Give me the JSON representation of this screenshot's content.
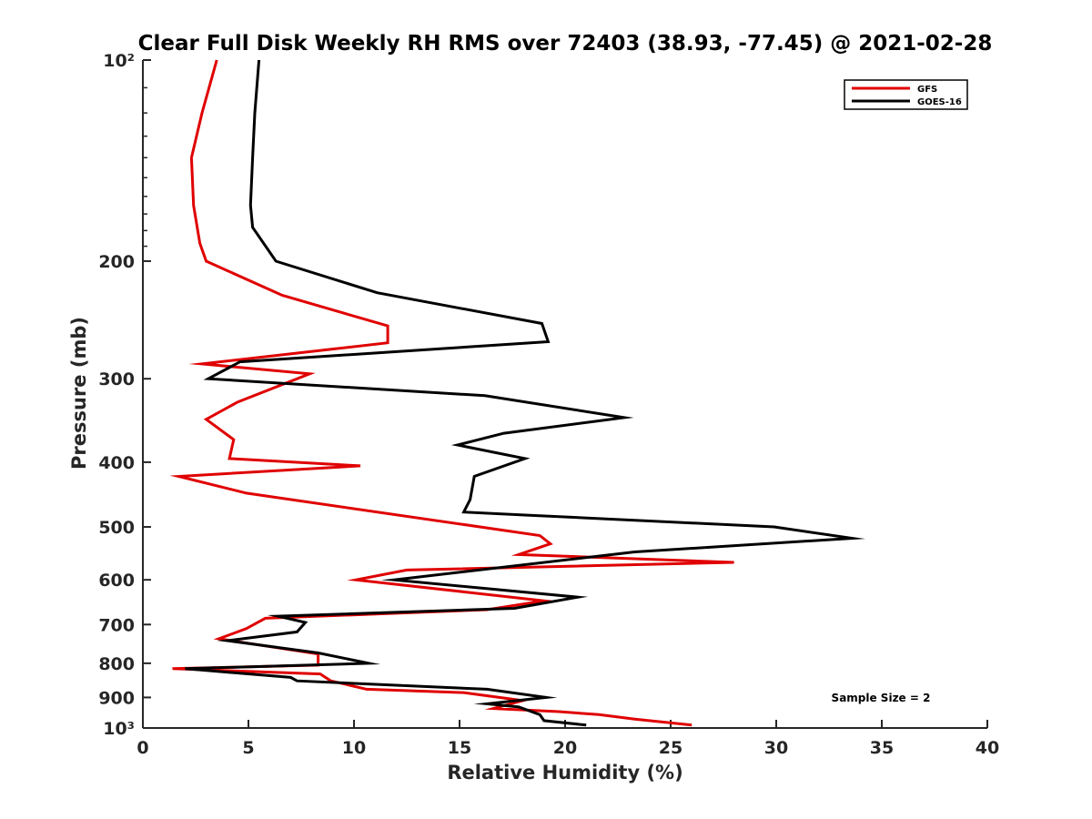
{
  "chart_data": {
    "type": "line",
    "title": "Clear Full Disk Weekly RH RMS over 72403 (38.93, -77.45) @ 2021-02-28",
    "xlabel": "Relative Humidity (%)",
    "ylabel": "Pressure (mb)",
    "xlim": [
      0,
      40
    ],
    "ylim": [
      100,
      1000
    ],
    "yscale": "log",
    "y_reversed": true,
    "grid": false,
    "legend_position": "top-right",
    "x_ticks": [
      0,
      5,
      10,
      15,
      20,
      25,
      30,
      35,
      40
    ],
    "x_tick_labels": [
      "0",
      "5",
      "10",
      "15",
      "20",
      "25",
      "30",
      "35",
      "40"
    ],
    "y_ticks": [
      100,
      200,
      300,
      400,
      500,
      600,
      700,
      800,
      900,
      1000
    ],
    "y_tick_labels": [
      "10²",
      "200",
      "300",
      "400",
      "500",
      "600",
      "700",
      "800",
      "900",
      "10³"
    ],
    "annotations": [
      "Sample Size = 2"
    ],
    "series": [
      {
        "name": "GFS",
        "color": "#e00000",
        "points": [
          [
            3.5,
            100
          ],
          [
            2.8,
            120
          ],
          [
            2.3,
            140
          ],
          [
            2.4,
            165
          ],
          [
            2.7,
            188
          ],
          [
            3.0,
            200
          ],
          [
            6.6,
            225
          ],
          [
            11.6,
            250
          ],
          [
            11.6,
            265
          ],
          [
            2.8,
            285
          ],
          [
            7.9,
            295
          ],
          [
            4.5,
            325
          ],
          [
            3.0,
            345
          ],
          [
            4.3,
            370
          ],
          [
            4.1,
            395
          ],
          [
            10.3,
            405
          ],
          [
            1.7,
            420
          ],
          [
            4.9,
            445
          ],
          [
            18.8,
            515
          ],
          [
            19.3,
            530
          ],
          [
            17.8,
            550
          ],
          [
            28.0,
            565
          ],
          [
            12.5,
            580
          ],
          [
            10.1,
            600
          ],
          [
            19.0,
            645
          ],
          [
            16.3,
            665
          ],
          [
            5.8,
            685
          ],
          [
            4.9,
            710
          ],
          [
            3.6,
            735
          ],
          [
            8.3,
            775
          ],
          [
            8.3,
            805
          ],
          [
            1.4,
            815
          ],
          [
            8.4,
            830
          ],
          [
            8.9,
            850
          ],
          [
            10.6,
            875
          ],
          [
            15.2,
            885
          ],
          [
            18.0,
            910
          ],
          [
            16.6,
            935
          ],
          [
            19.7,
            945
          ],
          [
            21.6,
            955
          ],
          [
            23.3,
            970
          ],
          [
            26.0,
            990
          ]
        ]
      },
      {
        "name": "GOES-16",
        "color": "#000000",
        "points": [
          [
            5.5,
            100
          ],
          [
            5.3,
            120
          ],
          [
            5.2,
            140
          ],
          [
            5.1,
            165
          ],
          [
            5.2,
            178
          ],
          [
            6.3,
            200
          ],
          [
            11.1,
            223
          ],
          [
            18.9,
            248
          ],
          [
            19.2,
            264
          ],
          [
            4.6,
            283
          ],
          [
            3.1,
            300
          ],
          [
            16.2,
            318
          ],
          [
            22.8,
            343
          ],
          [
            17.1,
            362
          ],
          [
            14.9,
            377
          ],
          [
            18.1,
            395
          ],
          [
            15.7,
            420
          ],
          [
            15.5,
            455
          ],
          [
            15.2,
            475
          ],
          [
            18.1,
            480
          ],
          [
            29.9,
            500
          ],
          [
            33.6,
            520
          ],
          [
            23.3,
            545
          ],
          [
            11.9,
            600
          ],
          [
            20.6,
            637
          ],
          [
            17.6,
            662
          ],
          [
            6.4,
            680
          ],
          [
            7.7,
            695
          ],
          [
            7.3,
            718
          ],
          [
            4.0,
            740
          ],
          [
            8.3,
            772
          ],
          [
            10.7,
            800
          ],
          [
            2.0,
            815
          ],
          [
            7.0,
            840
          ],
          [
            7.3,
            850
          ],
          [
            16.3,
            875
          ],
          [
            19.1,
            900
          ],
          [
            16.3,
            920
          ],
          [
            17.8,
            930
          ],
          [
            18.8,
            955
          ],
          [
            19.0,
            975
          ],
          [
            21.0,
            990
          ]
        ]
      }
    ]
  }
}
